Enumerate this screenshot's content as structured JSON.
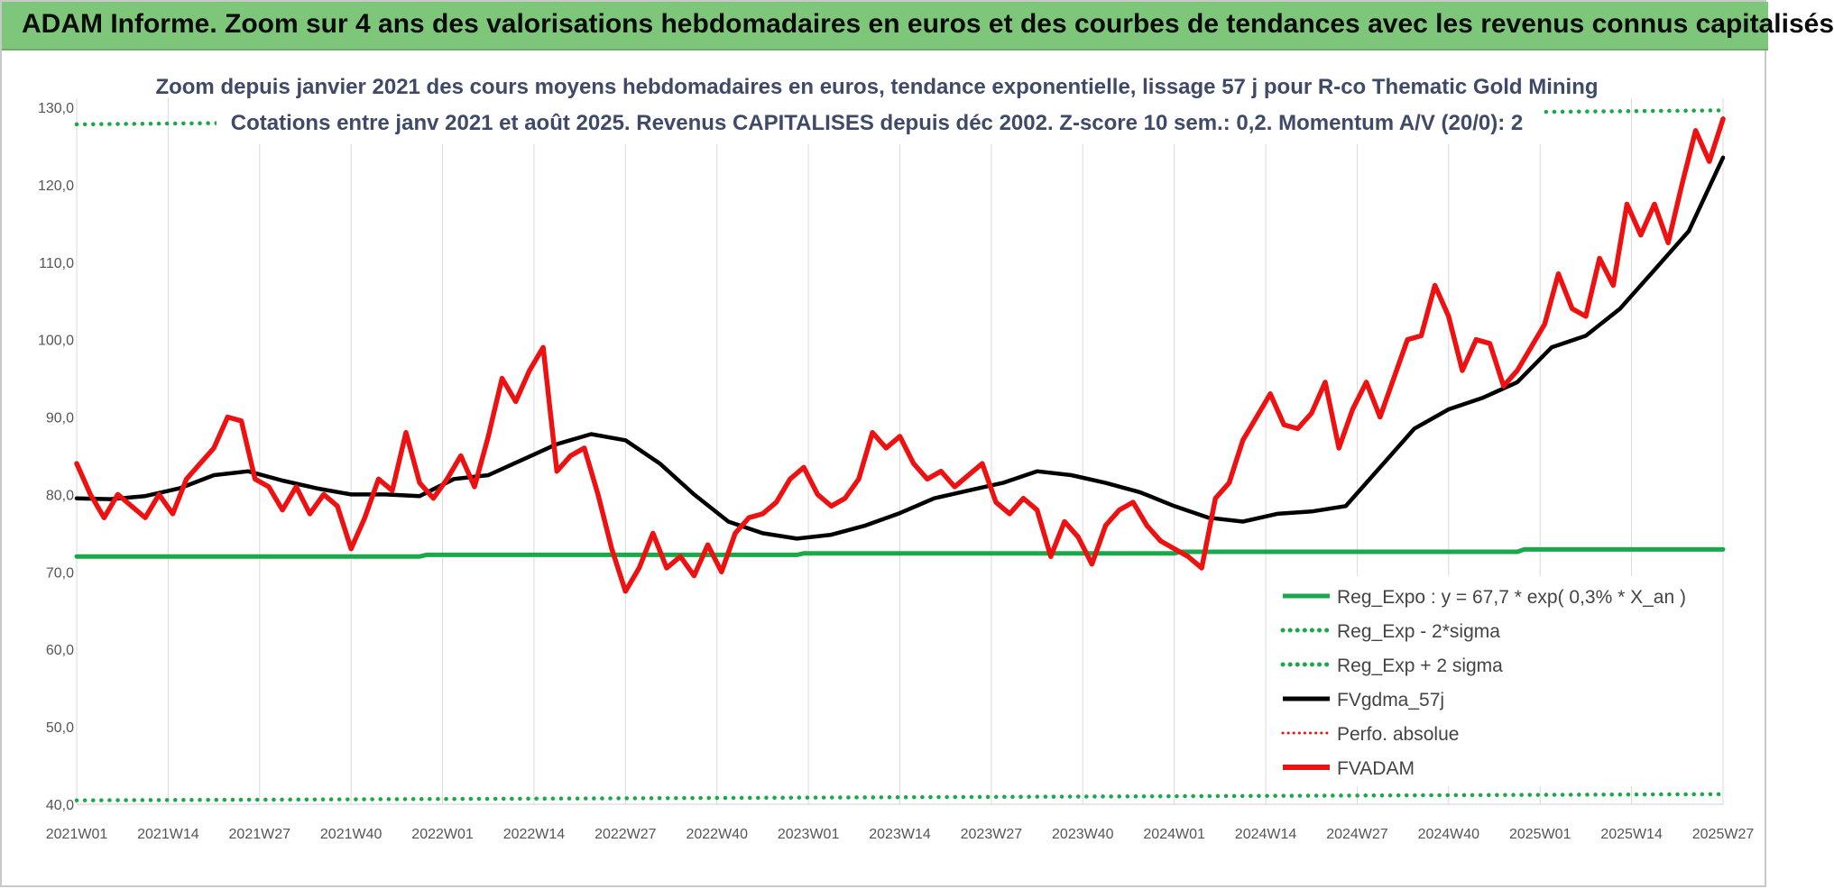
{
  "banner": {
    "title": "ADAM Informe. Zoom sur 4 ans des valorisations hebdomadaires en euros et des courbes de tendances avec les revenus connus capitalisés"
  },
  "colors": {
    "banner_bg": "#7dc67a",
    "regression": "#1aa84a",
    "smoothing": "#000000",
    "price": "#ee1111",
    "absolute_perf": "#ee1111"
  },
  "chart_data": {
    "type": "line",
    "title": "Zoom depuis janvier 2021 des cours moyens hebdomadaires en euros, tendance exponentielle, lissage 57 j pour R-co Thematic Gold Mining",
    "subtitle": "Cotations entre janv 2021 et août 2025. Revenus CAPITALISES depuis déc 2002. Z-score 10 sem.: 0,2. Momentum A/V (20/0): 2",
    "xlabel": "",
    "ylabel": "",
    "ylim": [
      40,
      130
    ],
    "yticks": [
      "130,0",
      "120,0",
      "110,0",
      "100,0",
      "90,0",
      "80,0",
      "70,0",
      "60,0",
      "50,0",
      "40,0"
    ],
    "xticks": [
      "2021W01",
      "2021W14",
      "2021W27",
      "2021W40",
      "2022W01",
      "2022W14",
      "2022W27",
      "2022W40",
      "2023W01",
      "2023W14",
      "2023W27",
      "2023W40",
      "2024W01",
      "2024W14",
      "2024W27",
      "2024W40",
      "2025W01",
      "2025W14",
      "2025W27"
    ],
    "x_week_index_range": [
      0,
      240
    ],
    "grid": "vertical gridlines",
    "legend_placement": "bottom-right",
    "legend": [
      {
        "label": "Reg_Expo : y = 67,7 * exp( 0,3% *  X_an )",
        "series": "reg_expo"
      },
      {
        "label": "Reg_Exp - 2*sigma",
        "series": "reg_minus"
      },
      {
        "label": "Reg_Exp + 2 sigma",
        "series": "reg_plus"
      },
      {
        "label": "FVgdma_57j",
        "series": "fvgdma"
      },
      {
        "label": "Perfo. absolue",
        "series": "perfo"
      },
      {
        "label": "FVADAM",
        "series": "fvadam"
      }
    ],
    "series": [
      {
        "name": "Reg_Expo : y = 67,7 * exp( 0,3% *  X_an )",
        "key": "reg_expo",
        "color": "#1aa84a",
        "style": "solid",
        "x": [
          0,
          50,
          51,
          105,
          106,
          160,
          161,
          210,
          211,
          240
        ],
        "values": [
          72.0,
          72.0,
          72.2,
          72.2,
          72.4,
          72.4,
          72.6,
          72.6,
          72.9,
          72.9
        ]
      },
      {
        "name": "Reg_Exp - 2*sigma",
        "key": "reg_minus",
        "color": "#1aa84a",
        "style": "dotted",
        "x": [
          0,
          240
        ],
        "values": [
          40.5,
          41.3
        ]
      },
      {
        "name": "Reg_Exp + 2 sigma",
        "key": "reg_plus",
        "color": "#1aa84a",
        "style": "dotted",
        "x": [
          0,
          240
        ],
        "values": [
          127.8,
          129.6
        ]
      },
      {
        "name": "FVgdma_57j",
        "key": "fvgdma",
        "color": "#000000",
        "style": "solid",
        "x": [
          0,
          5,
          10,
          15,
          20,
          25,
          30,
          35,
          40,
          45,
          50,
          55,
          60,
          65,
          70,
          75,
          80,
          85,
          90,
          95,
          100,
          105,
          110,
          115,
          120,
          125,
          130,
          135,
          140,
          145,
          150,
          155,
          160,
          165,
          170,
          175,
          180,
          185,
          190,
          195,
          200,
          205,
          210,
          215,
          220,
          225,
          230,
          235,
          240
        ],
        "values": [
          79.5,
          79.4,
          79.8,
          80.8,
          82.5,
          83.0,
          81.8,
          80.8,
          80.0,
          80.0,
          79.8,
          82.0,
          82.5,
          84.5,
          86.5,
          87.8,
          87.0,
          84.0,
          80.0,
          76.5,
          75.0,
          74.3,
          74.8,
          76.0,
          77.6,
          79.5,
          80.5,
          81.5,
          83.0,
          82.5,
          81.5,
          80.3,
          78.5,
          77.0,
          76.5,
          77.5,
          77.8,
          78.5,
          83.5,
          88.5,
          91.0,
          92.5,
          94.5,
          99.0,
          100.5,
          104.0,
          109.0,
          114.0,
          123.5
        ]
      },
      {
        "name": "Perfo. absolue",
        "key": "perfo",
        "color": "#ee1111",
        "style": "dotted",
        "x": [],
        "values": []
      },
      {
        "name": "FVADAM",
        "key": "fvadam",
        "color": "#ee1111",
        "style": "solid",
        "x": [
          0,
          2,
          4,
          6,
          8,
          10,
          12,
          14,
          16,
          18,
          20,
          22,
          24,
          26,
          28,
          30,
          32,
          34,
          36,
          38,
          40,
          42,
          44,
          46,
          48,
          50,
          52,
          54,
          56,
          58,
          60,
          62,
          64,
          66,
          68,
          70,
          72,
          74,
          76,
          78,
          80,
          82,
          84,
          86,
          88,
          90,
          92,
          94,
          96,
          98,
          100,
          102,
          104,
          106,
          108,
          110,
          112,
          114,
          116,
          118,
          120,
          122,
          124,
          126,
          128,
          130,
          132,
          134,
          136,
          138,
          140,
          142,
          144,
          146,
          148,
          150,
          152,
          154,
          156,
          158,
          160,
          162,
          164,
          166,
          168,
          170,
          172,
          174,
          176,
          178,
          180,
          182,
          184,
          186,
          188,
          190,
          192,
          194,
          196,
          198,
          200,
          202,
          204,
          206,
          208,
          210,
          212,
          214,
          216,
          218,
          220,
          222,
          224,
          226,
          228,
          230,
          232,
          234,
          236,
          238,
          240
        ],
        "values": [
          84.0,
          80.0,
          77.0,
          80.0,
          78.5,
          77.0,
          80.0,
          77.5,
          82.0,
          84.0,
          86.0,
          90.0,
          89.5,
          82.0,
          81.0,
          78.0,
          81.0,
          77.5,
          80.0,
          78.5,
          73.0,
          77.0,
          82.0,
          80.5,
          88.0,
          81.5,
          79.5,
          82.0,
          85.0,
          81.0,
          87.5,
          95.0,
          92.0,
          96.0,
          99.0,
          83.0,
          85.0,
          86.0,
          80.0,
          73.0,
          67.5,
          70.5,
          75.0,
          70.5,
          72.0,
          69.5,
          73.5,
          70.0,
          75.0,
          77.0,
          77.5,
          79.0,
          82.0,
          83.5,
          80.0,
          78.5,
          79.5,
          82.0,
          88.0,
          86.0,
          87.5,
          84.0,
          82.0,
          83.0,
          81.0,
          82.5,
          84.0,
          79.0,
          77.5,
          79.5,
          78.0,
          72.0,
          76.5,
          74.5,
          71.0,
          76.0,
          78.0,
          79.0,
          76.0,
          74.0,
          73.0,
          72.0,
          70.5,
          79.5,
          81.5,
          87.0,
          90.0,
          93.0,
          89.0,
          88.5,
          90.5,
          94.5,
          86.0,
          91.0,
          94.5,
          90.0,
          95.0,
          100.0,
          100.5,
          107.0,
          103.0,
          96.0,
          100.0,
          99.5,
          94.0,
          96.0,
          99.0,
          102.0,
          108.5,
          104.0,
          103.0,
          110.5,
          107.0,
          117.5,
          113.5,
          117.5,
          112.5,
          120.0,
          127.0,
          123.0,
          128.5
        ]
      }
    ]
  }
}
